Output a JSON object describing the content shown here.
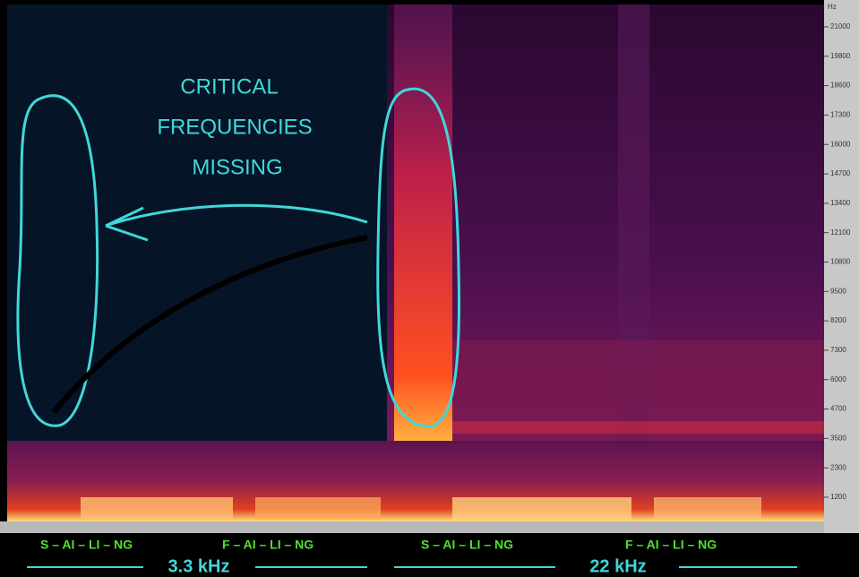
{
  "annotation": {
    "lines": [
      "CRITICAL",
      "FREQUENCIES",
      "MISSING"
    ]
  },
  "frequency_axis": {
    "unit": "Hz",
    "ticks": [
      "21000",
      "19800",
      "18600",
      "17300",
      "16000",
      "14700",
      "13400",
      "12100",
      "10800",
      "9500",
      "8200",
      "7300",
      "6000",
      "4700",
      "3500",
      "2300",
      "1200"
    ]
  },
  "captions": {
    "syllables": [
      "S – AI – LI – NG",
      "F – AI – LI – NG",
      "S – AI – LI – NG",
      "F – AI – LI – NG"
    ],
    "bandwidths": [
      "3.3 kHz",
      "22 kHz"
    ]
  }
}
